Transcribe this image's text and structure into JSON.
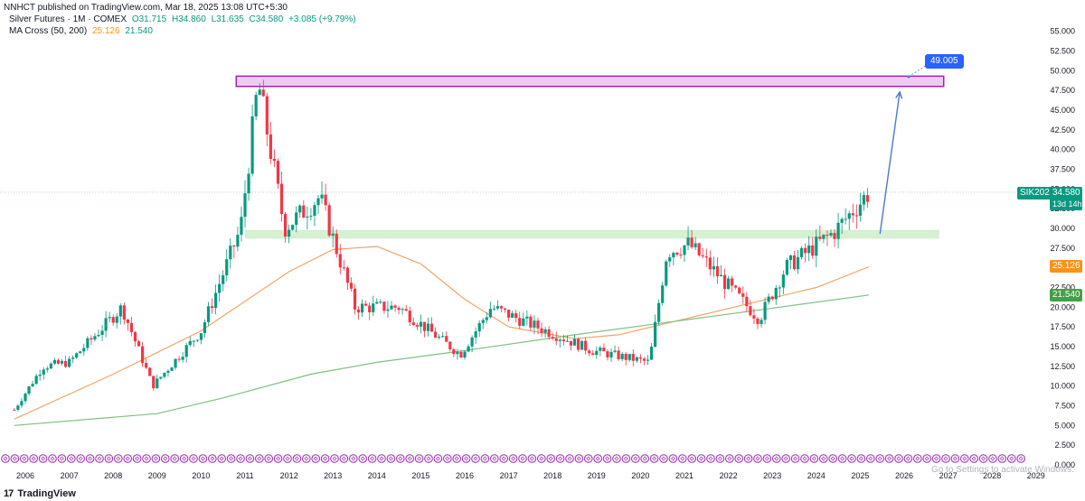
{
  "header": {
    "attribution": "NNHCT published on TradingView.com, Mar 18, 2025 13:08 UTC+5:30",
    "symbol_line": {
      "name": "Silver Futures · 1M · COMEX",
      "open": "O31.715",
      "high": "H34.860",
      "low": "L31.635",
      "close": "C34.580",
      "change": "+3.085 (+9.79%)"
    },
    "indicator_line": {
      "name": "MA Cross (50, 200)",
      "ma50": "25.126",
      "ma200": "21.540"
    }
  },
  "price_badges": {
    "symbol": "SIK2025",
    "price": "34.580",
    "countdown": "13d 14h",
    "ma50": "25.126",
    "ma200": "21.540"
  },
  "annotation": {
    "target_label": "49.005"
  },
  "footer": {
    "logo_mark": "17",
    "logo_text": "TradingView"
  },
  "watermark": {
    "text": "Go to Settings to activate Windows."
  },
  "colors": {
    "up": "#089981",
    "down": "#f23645",
    "ma50": "#f7a264",
    "ma200": "#7fc17f",
    "resistance_fill": "#f1c9f5",
    "resistance_stroke": "#9c27b0",
    "support_fill": "#d6f0d2",
    "arrow": "#4a79d6",
    "label_bg": "#2962ff"
  },
  "chart_data": {
    "type": "candlestick",
    "title": "Silver Futures · 1M · COMEX",
    "y_ticks": [
      "55.000",
      "52.500",
      "50.000",
      "47.500",
      "45.000",
      "42.500",
      "40.000",
      "37.500",
      "35.000",
      "32.500",
      "30.000",
      "27.500",
      "25.000",
      "22.500",
      "20.000",
      "17.500",
      "15.000",
      "12.500",
      "10.000",
      "7.500",
      "5.000",
      "2.500",
      "0.000"
    ],
    "x_ticks": [
      "2006",
      "2007",
      "2008",
      "2009",
      "2010",
      "2011",
      "2012",
      "2013",
      "2014",
      "2015",
      "2016",
      "2017",
      "2018",
      "2019",
      "2020",
      "2021",
      "2022",
      "2023",
      "2024",
      "2025",
      "2026",
      "2027",
      "2028",
      "2029"
    ],
    "ylim": [
      0,
      56.5
    ],
    "xlim": [
      "2005-09",
      "2029-08"
    ],
    "price_path_yearly": [
      {
        "year": 2005.75,
        "price": 7.0
      },
      {
        "year": 2006.4,
        "price": 12.5
      },
      {
        "year": 2007.0,
        "price": 13.0
      },
      {
        "year": 2008.2,
        "price": 20.0
      },
      {
        "year": 2008.9,
        "price": 10.0
      },
      {
        "year": 2010.0,
        "price": 17.0
      },
      {
        "year": 2010.9,
        "price": 30.0
      },
      {
        "year": 2011.3,
        "price": 48.5
      },
      {
        "year": 2011.9,
        "price": 30.0
      },
      {
        "year": 2012.7,
        "price": 34.0
      },
      {
        "year": 2013.5,
        "price": 20.0
      },
      {
        "year": 2014.5,
        "price": 20.0
      },
      {
        "year": 2015.9,
        "price": 14.0
      },
      {
        "year": 2016.6,
        "price": 20.0
      },
      {
        "year": 2018.9,
        "price": 14.5
      },
      {
        "year": 2020.2,
        "price": 13.0
      },
      {
        "year": 2020.6,
        "price": 27.0
      },
      {
        "year": 2021.1,
        "price": 28.0
      },
      {
        "year": 2022.7,
        "price": 18.5
      },
      {
        "year": 2023.3,
        "price": 25.0
      },
      {
        "year": 2024.4,
        "price": 29.5
      },
      {
        "year": 2025.2,
        "price": 34.58
      }
    ],
    "ma50_path": [
      {
        "year": 2005.75,
        "price": 5.8
      },
      {
        "year": 2008.0,
        "price": 11.5
      },
      {
        "year": 2010.0,
        "price": 17.0
      },
      {
        "year": 2012.0,
        "price": 24.5
      },
      {
        "year": 2013.0,
        "price": 27.3
      },
      {
        "year": 2014.0,
        "price": 27.7
      },
      {
        "year": 2015.0,
        "price": 25.5
      },
      {
        "year": 2016.0,
        "price": 21.0
      },
      {
        "year": 2017.0,
        "price": 17.5
      },
      {
        "year": 2018.5,
        "price": 16.0
      },
      {
        "year": 2019.5,
        "price": 16.5
      },
      {
        "year": 2021.0,
        "price": 18.5
      },
      {
        "year": 2022.5,
        "price": 20.5
      },
      {
        "year": 2024.0,
        "price": 22.5
      },
      {
        "year": 2025.2,
        "price": 25.126
      }
    ],
    "ma200_path": [
      {
        "year": 2005.75,
        "price": 5.0
      },
      {
        "year": 2009.0,
        "price": 6.5
      },
      {
        "year": 2010.5,
        "price": 8.5
      },
      {
        "year": 2012.5,
        "price": 11.5
      },
      {
        "year": 2014.0,
        "price": 13.0
      },
      {
        "year": 2016.0,
        "price": 14.5
      },
      {
        "year": 2018.5,
        "price": 16.5
      },
      {
        "year": 2020.5,
        "price": 18.0
      },
      {
        "year": 2022.5,
        "price": 19.5
      },
      {
        "year": 2025.2,
        "price": 21.54
      }
    ],
    "zones": [
      {
        "name": "resistance",
        "from": 48.0,
        "to": 49.3,
        "x_start": 2010.8,
        "x_end": 2026.9
      },
      {
        "name": "support",
        "from": 28.7,
        "to": 29.8,
        "x_start": 2011.0,
        "x_end": 2026.8
      }
    ],
    "target_arrow": {
      "from": {
        "year": 2025.45,
        "price": 29.3
      },
      "to": {
        "year": 2025.9,
        "price": 47.3
      },
      "label": "49.005"
    },
    "last_price": 34.58,
    "grid": false
  }
}
